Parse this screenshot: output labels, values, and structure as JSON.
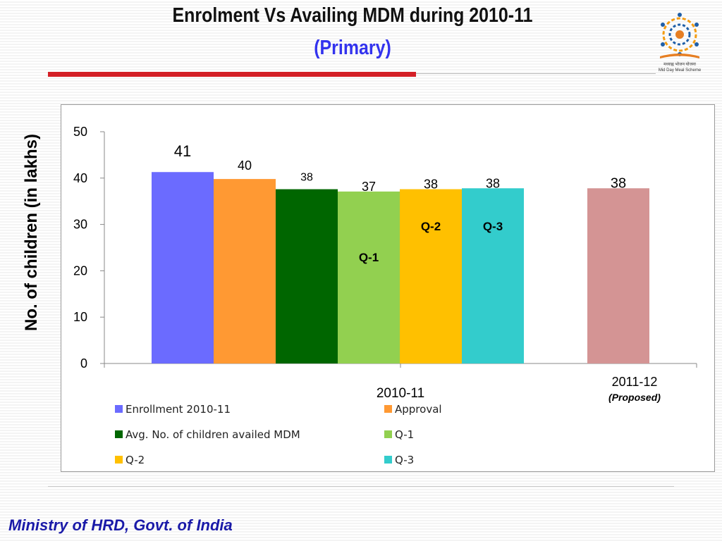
{
  "slide": {
    "title": "Enrolment Vs Availing MDM during  2010-11",
    "subtitle": "(Primary)",
    "footer": "Ministry of HRD, Govt. of India",
    "logo_text": "मध्याह्न भोजन योजना",
    "logo_subtext": "Mid Day Meal Scheme"
  },
  "colors": {
    "enrollment": "#6b6bff",
    "approval": "#ff9933",
    "avg_availed": "#006600",
    "q1": "#92d050",
    "q2": "#ffc000",
    "q3": "#33cccc",
    "proposed": "#d49494",
    "title_accent": "#3333ee",
    "red_bar": "#d42027"
  },
  "chart_data": {
    "type": "bar",
    "ylabel": "No. of children (in lakhs)",
    "ylim": [
      0,
      50
    ],
    "yticks": [
      "0",
      "10",
      "20",
      "30",
      "40",
      "50"
    ],
    "groups": [
      {
        "label": "2010-11",
        "sublabel": ""
      },
      {
        "label": "2011-12",
        "sublabel": "(Proposed)"
      }
    ],
    "series": [
      {
        "name": "Enrollment 2010-11",
        "group": 0,
        "value": 41.3,
        "data_label": "41",
        "color_key": "enrollment"
      },
      {
        "name": "Approval",
        "group": 0,
        "value": 39.8,
        "data_label": "40",
        "color_key": "approval"
      },
      {
        "name": "Avg. No. of children availed MDM",
        "group": 0,
        "value": 37.6,
        "data_label": "38",
        "color_key": "avg_availed"
      },
      {
        "name": "Q-1",
        "group": 0,
        "value": 37.1,
        "data_label": "37",
        "inner_label": "Q-1",
        "color_key": "q1"
      },
      {
        "name": "Q-2",
        "group": 0,
        "value": 37.6,
        "data_label": "38",
        "inner_label": "Q-2",
        "color_key": "q2"
      },
      {
        "name": "Q-3",
        "group": 0,
        "value": 37.8,
        "data_label": "38",
        "inner_label": "Q-3",
        "color_key": "q3"
      },
      {
        "group": 1,
        "value": 37.8,
        "data_label": "38",
        "color_key": "proposed"
      }
    ],
    "legend": [
      "Enrollment 2010-11",
      "Approval",
      "Avg. No. of children availed MDM",
      "Q-1",
      "Q-2",
      "Q-3"
    ],
    "grid": false,
    "legend_position": "bottom"
  }
}
